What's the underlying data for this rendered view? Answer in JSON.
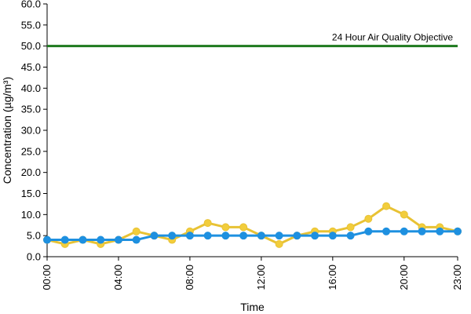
{
  "chart_data": {
    "type": "line",
    "xlabel": "Time",
    "ylabel": "Concentration (µg/m³)",
    "ylim": [
      0,
      60
    ],
    "yticks": [
      "0.0",
      "5.0",
      "10.0",
      "15.0",
      "20.0",
      "25.0",
      "30.0",
      "35.0",
      "40.0",
      "45.0",
      "50.0",
      "55.0",
      "60.0"
    ],
    "x_ticks": [
      "00:00",
      "04:00",
      "08:00",
      "12:00",
      "16:00",
      "20:00",
      "23:00"
    ],
    "x_tick_hours": [
      0,
      4,
      8,
      12,
      16,
      20,
      23
    ],
    "x_hours": [
      0,
      1,
      2,
      3,
      4,
      5,
      6,
      7,
      8,
      9,
      10,
      11,
      12,
      13,
      14,
      15,
      16,
      17,
      18,
      19,
      20,
      21,
      22,
      23
    ],
    "grid": false,
    "objective": {
      "label": "24 Hour Air Quality Objective",
      "value": 50,
      "color": "#1e7a1e"
    },
    "series": [
      {
        "color": "#e8c234",
        "marker_color": "#f2cd3c",
        "values": [
          4,
          3,
          4,
          3,
          4,
          6,
          5,
          4,
          6,
          8,
          7,
          7,
          5,
          3,
          5,
          6,
          6,
          7,
          9,
          12,
          10,
          7,
          7,
          6
        ]
      },
      {
        "color": "#1e90e0",
        "marker_color": "#1e90e0",
        "values": [
          4,
          4,
          4,
          4,
          4,
          4,
          5,
          5,
          5,
          5,
          5,
          5,
          5,
          5,
          5,
          5,
          5,
          5,
          6,
          6,
          6,
          6,
          6,
          6
        ]
      }
    ]
  }
}
